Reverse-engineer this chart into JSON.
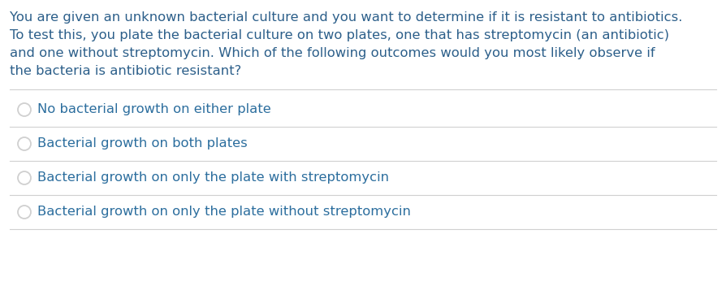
{
  "background_color": "#ffffff",
  "text_color_blue": "#2c5f8a",
  "text_color_option": "#2c6e9e",
  "separator_color": "#d0d0d0",
  "question_text_lines": [
    "You are given an unknown bacterial culture and you want to determine if it is resistant to antibiotics.",
    "To test this, you plate the bacterial culture on two plates, one that has streptomycin (an antibiotic)",
    "and one without streptomycin. Which of the following outcomes would you most likely observe if",
    "the bacteria is antibiotic resistant?"
  ],
  "options": [
    "No bacterial growth on either plate",
    "Bacterial growth on both plates",
    "Bacterial growth on only the plate with streptomycin",
    "Bacterial growth on only the plate without streptomycin"
  ],
  "question_fontsize": 11.8,
  "option_fontsize": 11.8,
  "fig_width": 8.94,
  "fig_height": 3.52,
  "dpi": 100
}
